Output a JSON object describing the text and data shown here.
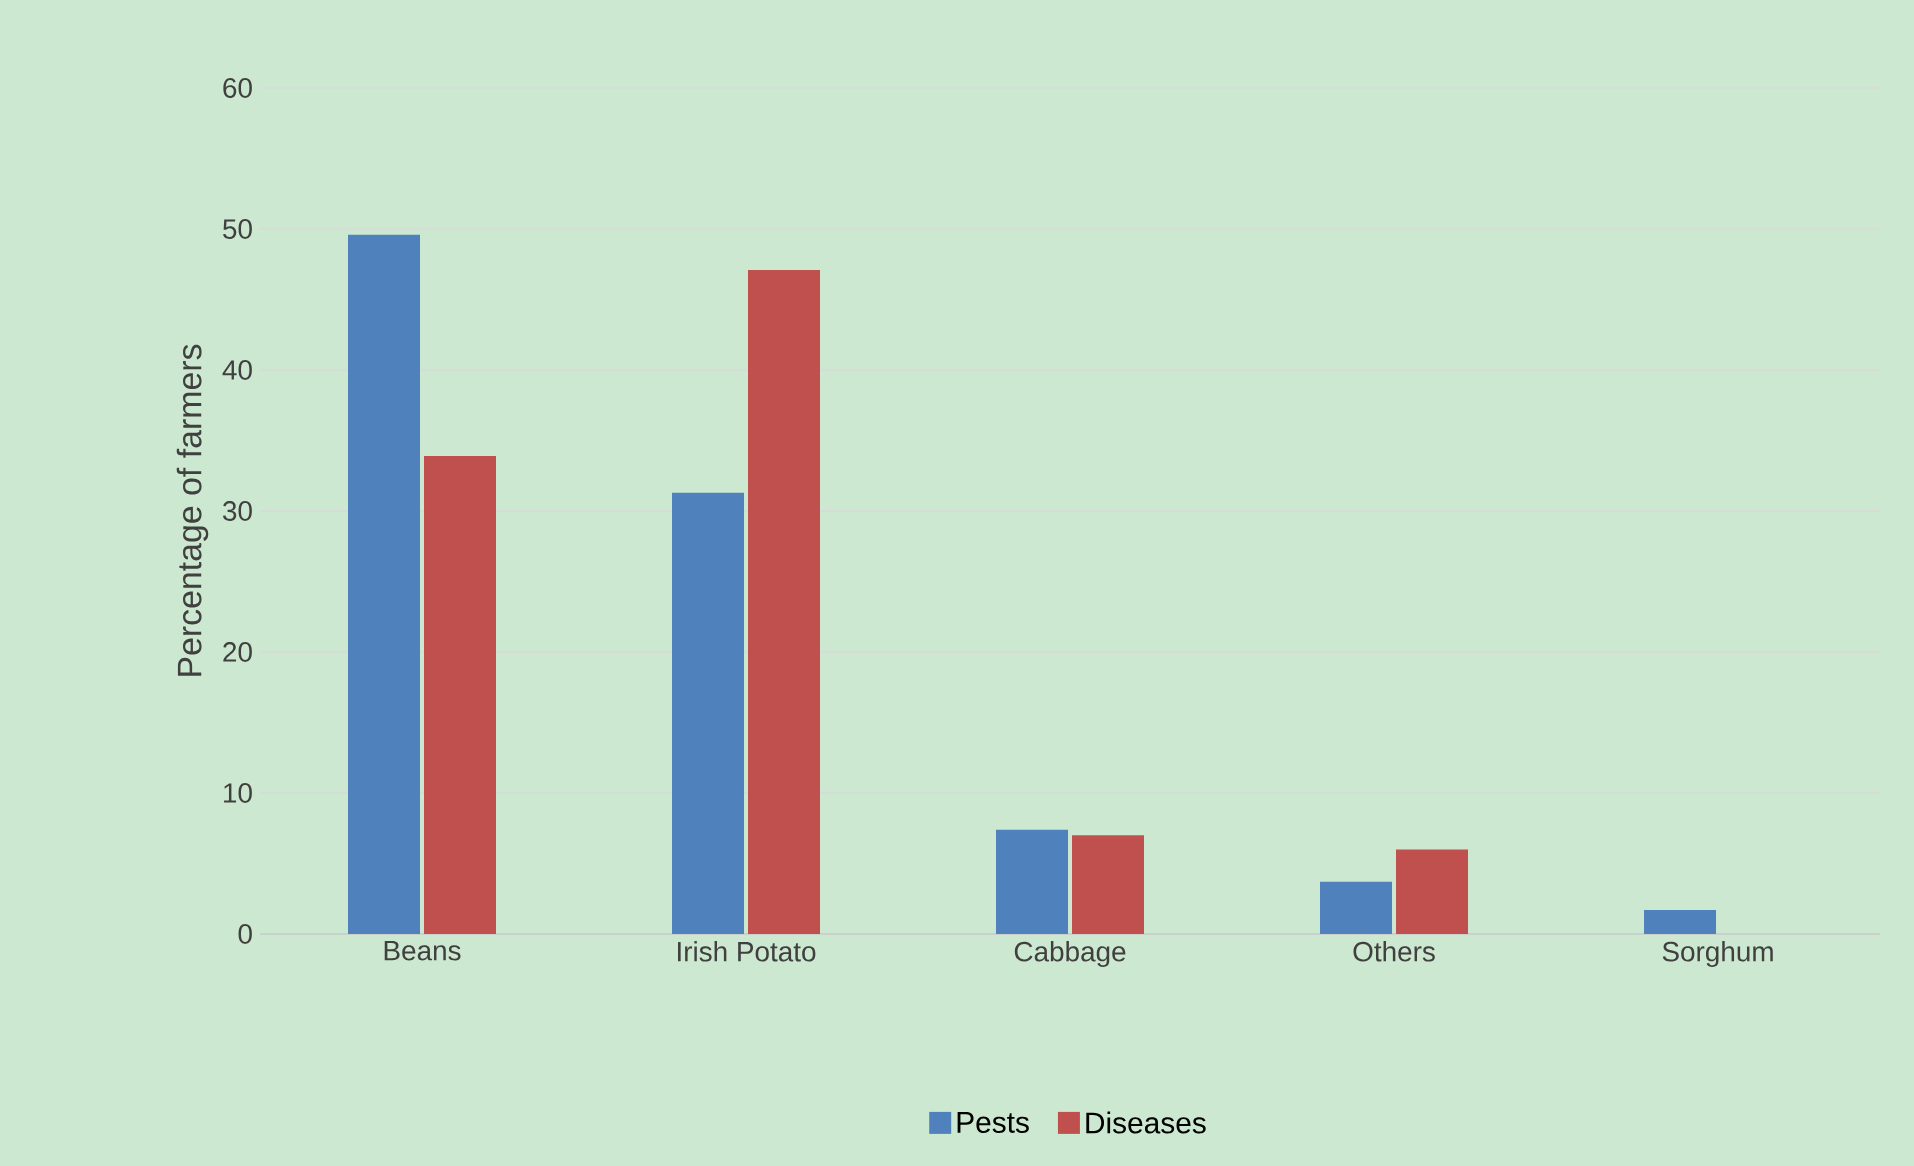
{
  "chart_data": {
    "type": "bar",
    "ylabel": "Percentage of farmers",
    "categories": [
      "Beans",
      "Irish Potato",
      "Cabbage",
      "Others",
      "Sorghum"
    ],
    "series": [
      {
        "name": "Pests",
        "color": "#4f81bd",
        "values": [
          49.6,
          31.3,
          7.4,
          3.7,
          1.7
        ]
      },
      {
        "name": "Diseases",
        "color": "#c0504d",
        "values": [
          33.9,
          47.1,
          7.0,
          6.0,
          null
        ]
      }
    ],
    "ylim": [
      0,
      60
    ],
    "yticks": [
      0,
      10,
      20,
      30,
      40,
      50,
      60
    ],
    "grid": "y",
    "legend": "bottom"
  }
}
